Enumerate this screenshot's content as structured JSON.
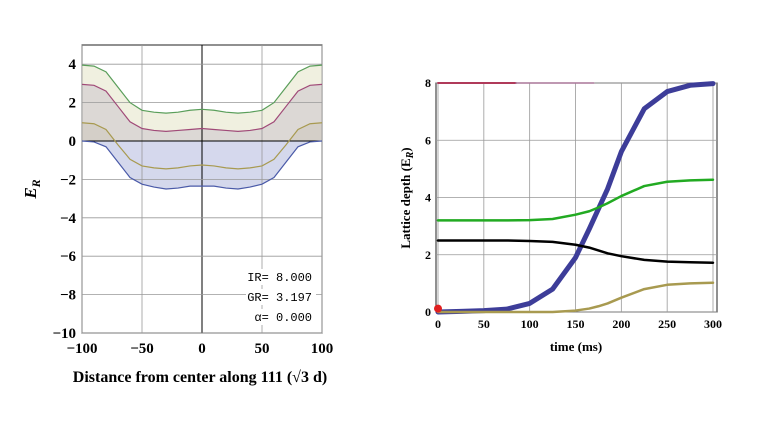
{
  "chart_data": [
    {
      "type": "area",
      "xlabel": "Distance from center along 111 (√3 d)",
      "ylabel": "E",
      "ylabel_sub": "R",
      "xlim": [
        -100,
        100
      ],
      "ylim": [
        -10,
        5
      ],
      "xticks": [
        "−100",
        "−50",
        "0",
        "50",
        "100"
      ],
      "xtick_values": [
        -100,
        -50,
        0,
        50,
        100
      ],
      "yticks": [
        "4",
        "2",
        "0",
        "−2",
        "−4",
        "−6",
        "−8",
        "−10"
      ],
      "ytick_values": [
        4,
        2,
        0,
        -2,
        -4,
        -6,
        -8,
        -10
      ],
      "grid": true,
      "x": [
        -100,
        -90,
        -80,
        -70,
        -60,
        -50,
        -40,
        -30,
        -20,
        -10,
        0,
        10,
        20,
        30,
        40,
        50,
        60,
        70,
        80,
        90,
        100
      ],
      "series": [
        {
          "color": "#5a9e5a",
          "fill": "#eeeedd",
          "values": [
            3.95,
            3.9,
            3.6,
            2.8,
            2.0,
            1.6,
            1.5,
            1.45,
            1.5,
            1.6,
            1.65,
            1.6,
            1.5,
            1.45,
            1.5,
            1.6,
            2.0,
            2.8,
            3.6,
            3.9,
            3.95
          ]
        },
        {
          "color": "#a04a78",
          "fill": "#d8d4d0",
          "values": [
            2.95,
            2.9,
            2.6,
            1.8,
            1.0,
            0.65,
            0.55,
            0.5,
            0.55,
            0.6,
            0.65,
            0.6,
            0.55,
            0.5,
            0.55,
            0.65,
            1.0,
            1.8,
            2.6,
            2.9,
            2.95
          ]
        },
        {
          "color": "#a89a50",
          "fill": "#cfcac2",
          "values": [
            0.95,
            0.9,
            0.6,
            -0.2,
            -0.95,
            -1.3,
            -1.4,
            -1.45,
            -1.4,
            -1.3,
            -1.25,
            -1.3,
            -1.4,
            -1.45,
            -1.4,
            -1.3,
            -0.95,
            -0.2,
            0.6,
            0.9,
            0.95
          ]
        },
        {
          "color": "#4a5aa8",
          "fill": "#d4d8f0",
          "values": [
            0.0,
            -0.05,
            -0.3,
            -1.1,
            -1.9,
            -2.25,
            -2.4,
            -2.5,
            -2.45,
            -2.35,
            -2.35,
            -2.35,
            -2.45,
            -2.5,
            -2.4,
            -2.25,
            -1.9,
            -1.1,
            -0.3,
            -0.05,
            0.0
          ]
        }
      ],
      "annotations": [
        {
          "label": "IR=",
          "value": "8.000"
        },
        {
          "label": "GR=",
          "value": "3.197"
        },
        {
          "label": "α=",
          "value": "0.000"
        }
      ]
    },
    {
      "type": "line",
      "xlabel": "time (ms)",
      "ylabel": "Lattice depth (E",
      "ylabel_sub": "R",
      "ylabel_end": ")",
      "xlim": [
        0,
        300
      ],
      "ylim": [
        0,
        8
      ],
      "xticks": [
        "0",
        "50",
        "100",
        "150",
        "200",
        "250",
        "300"
      ],
      "xtick_values": [
        0,
        50,
        100,
        150,
        200,
        250,
        300
      ],
      "yticks": [
        "0",
        "2",
        "4",
        "6",
        "8"
      ],
      "ytick_values": [
        0,
        2,
        4,
        6,
        8
      ],
      "grid": true,
      "x": [
        0,
        25,
        50,
        75,
        100,
        125,
        150,
        165,
        175,
        185,
        200,
        225,
        250,
        275,
        300
      ],
      "series": [
        {
          "color": "#3d3d99",
          "width": 5,
          "values": [
            0.0,
            0.02,
            0.05,
            0.1,
            0.3,
            0.8,
            1.9,
            2.9,
            3.6,
            4.3,
            5.6,
            7.1,
            7.7,
            7.92,
            7.98
          ]
        },
        {
          "color": "#22aa22",
          "width": 2.5,
          "values": [
            3.2,
            3.2,
            3.2,
            3.2,
            3.21,
            3.25,
            3.4,
            3.52,
            3.65,
            3.8,
            4.05,
            4.4,
            4.55,
            4.6,
            4.62
          ]
        },
        {
          "color": "#000000",
          "width": 2.5,
          "values": [
            2.5,
            2.5,
            2.5,
            2.5,
            2.48,
            2.45,
            2.35,
            2.25,
            2.15,
            2.05,
            1.95,
            1.82,
            1.76,
            1.74,
            1.72
          ]
        },
        {
          "color": "#a89a50",
          "width": 2.5,
          "values": [
            0.0,
            0.0,
            0.0,
            0.0,
            0.0,
            0.0,
            0.05,
            0.12,
            0.2,
            0.3,
            0.5,
            0.8,
            0.95,
            1.0,
            1.02
          ]
        },
        {
          "color": "#b03a5a",
          "width": 2,
          "x": [
            0,
            85
          ],
          "values": [
            8.0,
            8.0
          ]
        },
        {
          "color": "#aa7799",
          "width": 1.5,
          "x": [
            85,
            170
          ],
          "values": [
            8.0,
            8.0
          ]
        }
      ],
      "marker": {
        "x": 0,
        "y": 0.05,
        "color": "#e02020"
      }
    }
  ]
}
